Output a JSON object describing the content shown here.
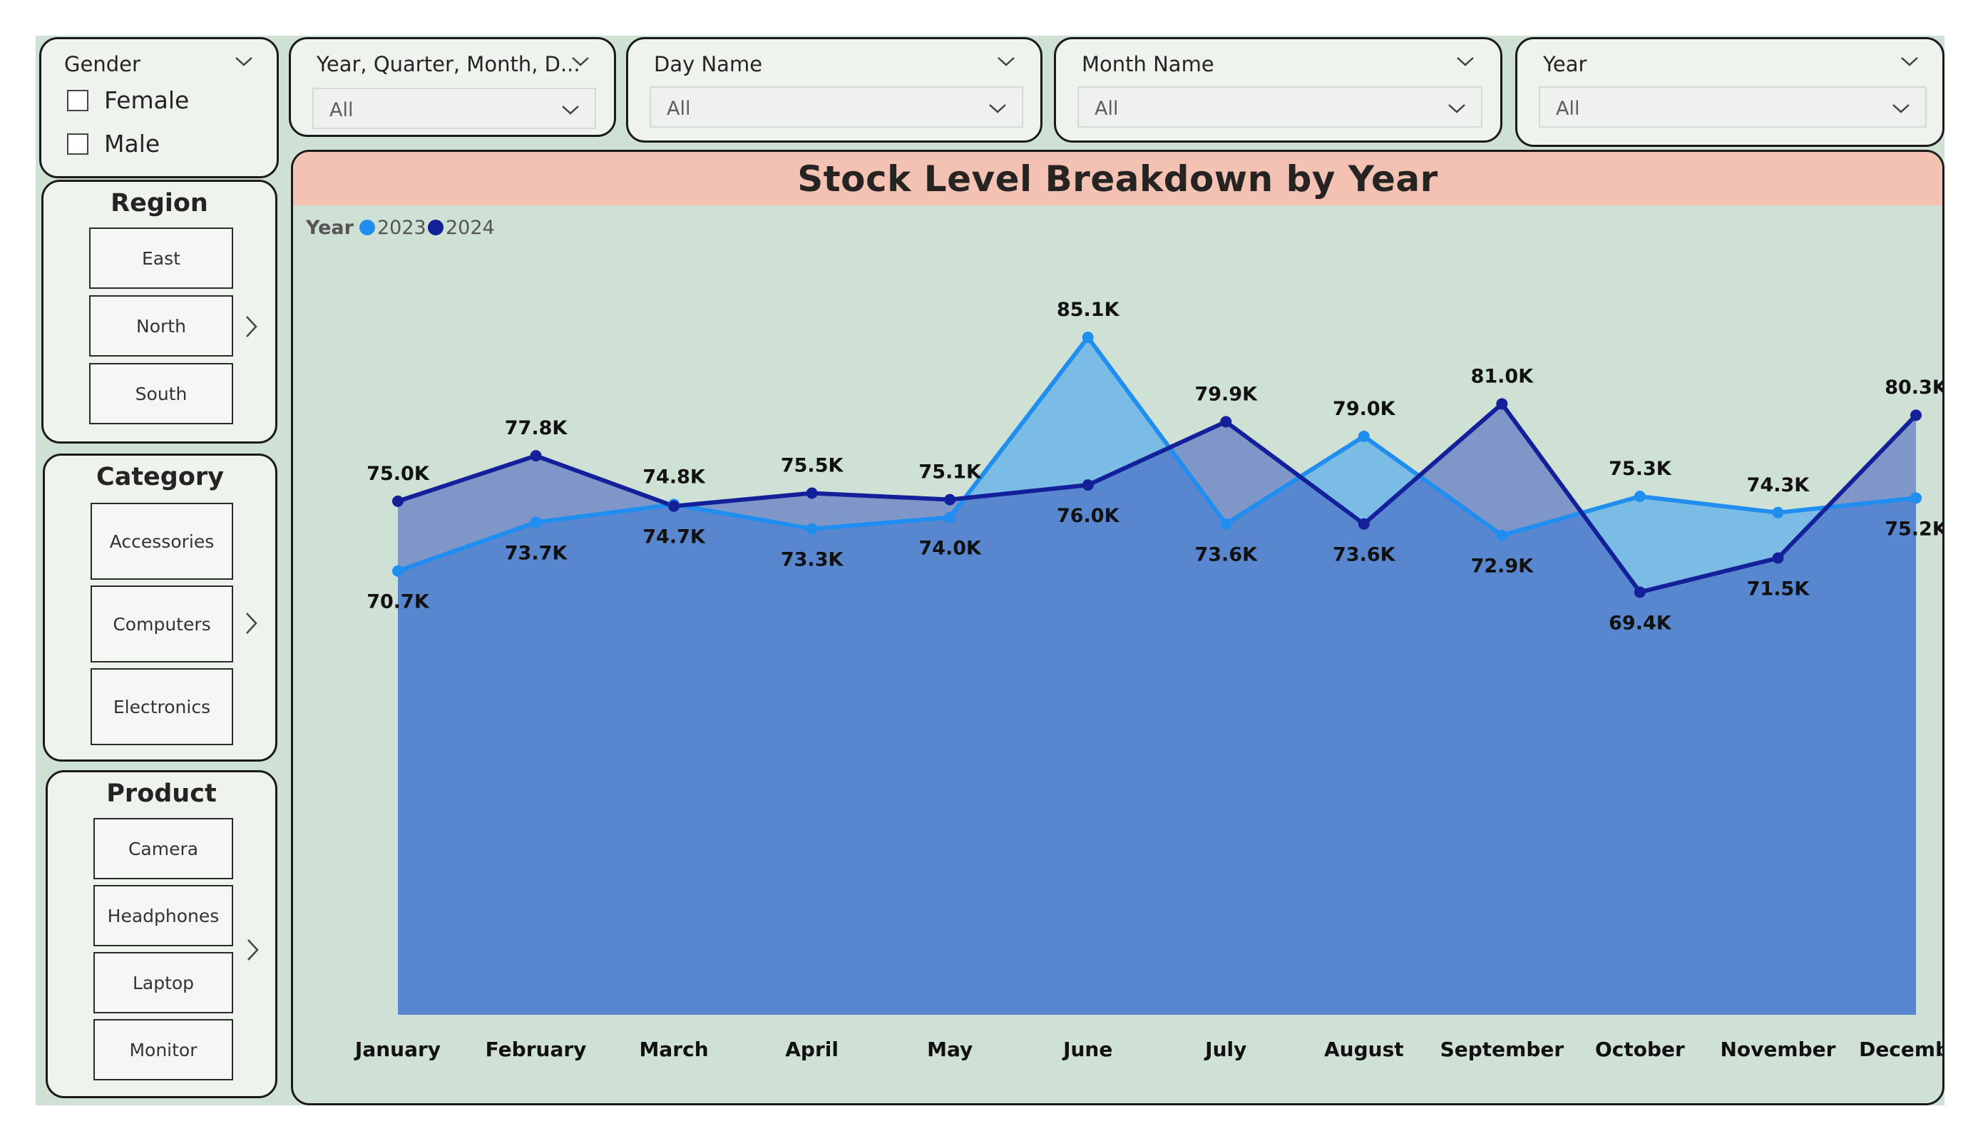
{
  "filters": {
    "gender": {
      "title": "Gender",
      "options": [
        "Female",
        "Male"
      ]
    },
    "date_hierarchy": {
      "title": "Year, Quarter, Month, D...",
      "value": "All"
    },
    "day_name": {
      "title": "Day Name",
      "value": "All"
    },
    "month_name": {
      "title": "Month Name",
      "value": "All"
    },
    "year": {
      "title": "Year",
      "value": "All"
    }
  },
  "region": {
    "title": "Region",
    "items": [
      "East",
      "North",
      "South"
    ]
  },
  "category": {
    "title": "Category",
    "items": [
      "Accessories",
      "Computers",
      "Electronics"
    ]
  },
  "product": {
    "title": "Product",
    "items": [
      "Camera",
      "Headphones",
      "Laptop",
      "Monitor"
    ]
  },
  "colors": {
    "canvas": "#cfe1d5",
    "header": "#f4c2b2",
    "series_2023": "#1f8ef0",
    "series_2024": "#13209a"
  },
  "chart_data": {
    "type": "area",
    "title": "Stock Level Breakdown by Year",
    "legend_title": "Year",
    "legend_position": "top-left",
    "categories": [
      "January",
      "February",
      "March",
      "April",
      "May",
      "June",
      "July",
      "August",
      "September",
      "October",
      "November",
      "December"
    ],
    "series": [
      {
        "name": "2023",
        "values": [
          70.7,
          73.7,
          74.8,
          73.3,
          74.0,
          85.1,
          73.6,
          79.0,
          72.9,
          75.3,
          74.3,
          75.2
        ],
        "labels": [
          "70.7K",
          "73.7K",
          "74.8K",
          "73.3K",
          "74.0K",
          "85.1K",
          "73.6K",
          "79.0K",
          "72.9K",
          "75.3K",
          "74.3K",
          "75.2K"
        ]
      },
      {
        "name": "2024",
        "values": [
          75.0,
          77.8,
          74.7,
          75.5,
          75.1,
          76.0,
          79.9,
          73.6,
          81.0,
          69.4,
          71.5,
          80.3
        ],
        "labels": [
          "75.0K",
          "77.8K",
          "74.7K",
          "75.5K",
          "75.1K",
          "76.0K",
          "79.9K",
          "73.6K",
          "81.0K",
          "69.4K",
          "71.5K",
          "80.3K"
        ]
      }
    ],
    "unit": "K",
    "grid": false
  }
}
